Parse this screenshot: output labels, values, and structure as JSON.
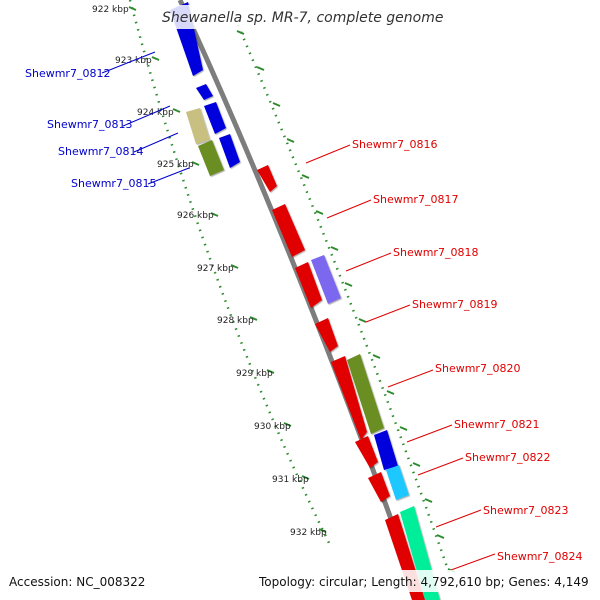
{
  "title": "Shewanella sp. MR-7, complete genome",
  "footer": {
    "accession": "Accession: NC_008322",
    "topology": "Topology: circular; Length: 4,792,610 bp; Genes: 4,149"
  },
  "ruler": [
    {
      "label": "922 kbp",
      "kb": 922
    },
    {
      "label": "923 kbp",
      "kb": 923
    },
    {
      "label": "924 kbp",
      "kb": 924
    },
    {
      "label": "925 kbp",
      "kb": 925
    },
    {
      "label": "926 kbp",
      "kb": 926
    },
    {
      "label": "927 kbp",
      "kb": 927
    },
    {
      "label": "928 kbp",
      "kb": 928
    },
    {
      "label": "929 kbp",
      "kb": 929
    },
    {
      "label": "930 kbp",
      "kb": 930
    },
    {
      "label": "931 kbp",
      "kb": 931
    },
    {
      "label": "932 kbp",
      "kb": 932
    }
  ],
  "genes_left": [
    {
      "name": "Shewmr7_0812",
      "color": "#0000dd"
    },
    {
      "name": "Shewmr7_0813",
      "color": "#c8c080"
    },
    {
      "name": "Shewmr7_0814",
      "color": "#0000dd"
    },
    {
      "name": "Shewmr7_0815",
      "color": "#6b8e23"
    }
  ],
  "genes_right": [
    {
      "name": "Shewmr7_0816",
      "color": "#e00000"
    },
    {
      "name": "Shewmr7_0817",
      "color": "#e00000"
    },
    {
      "name": "Shewmr7_0818",
      "color": "#7b68ee"
    },
    {
      "name": "Shewmr7_0819",
      "color": "#e00000"
    },
    {
      "name": "Shewmr7_0820",
      "color": "#6b8e23"
    },
    {
      "name": "Shewmr7_0821",
      "color": "#0000dd"
    },
    {
      "name": "Shewmr7_0822",
      "color": "#1ec8ff"
    },
    {
      "name": "Shewmr7_0823",
      "color": "#00ee99"
    },
    {
      "name": "Shewmr7_0824",
      "color": "#e00000"
    }
  ],
  "colors": {
    "backbone": "#888888",
    "ruler": "#2e8b2e",
    "left_label": "#0000cc",
    "right_label": "#e00000"
  }
}
